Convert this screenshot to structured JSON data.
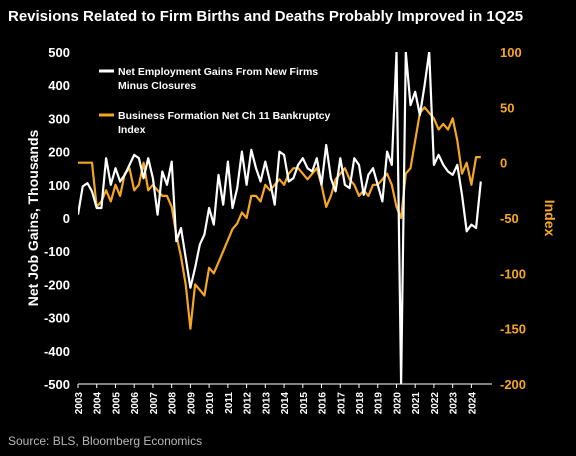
{
  "title": "Revisions Related to Firm Births and Deaths Probably Improved in 1Q25",
  "source": "Source: BLS, Bloomberg Economics",
  "chart_data": {
    "type": "line",
    "y_left": {
      "label": "Net Job Gains, Thousands",
      "range": [
        -500,
        500
      ],
      "ticks": [
        500,
        400,
        300,
        200,
        100,
        0,
        -100,
        -200,
        -300,
        -400,
        -500
      ],
      "color": "#ffffff"
    },
    "y_right": {
      "label": "Index",
      "range": [
        -200,
        100
      ],
      "ticks": [
        100,
        50,
        0,
        -50,
        -100,
        -150,
        -200
      ],
      "color": "#f5a623"
    },
    "x_ticks": [
      "2003",
      "2004",
      "2005",
      "2006",
      "2007",
      "2008",
      "2009",
      "2010",
      "2011",
      "2012",
      "2013",
      "2014",
      "2015",
      "2016",
      "2017",
      "2018",
      "2019",
      "2020",
      "2021",
      "2022",
      "2023",
      "2024"
    ],
    "grid": false,
    "legend_position": "top-left",
    "series": [
      {
        "name": "Net Employment Gains From New Firms Minus Closures",
        "axis": "left",
        "color": "#ffffff",
        "x": [
          2003.0,
          2003.25,
          2003.5,
          2003.75,
          2004.0,
          2004.25,
          2004.5,
          2004.75,
          2005.0,
          2005.25,
          2005.5,
          2005.75,
          2006.0,
          2006.25,
          2006.5,
          2006.75,
          2007.0,
          2007.25,
          2007.5,
          2007.75,
          2008.0,
          2008.25,
          2008.5,
          2008.75,
          2009.0,
          2009.25,
          2009.5,
          2009.75,
          2010.0,
          2010.25,
          2010.5,
          2010.75,
          2011.0,
          2011.25,
          2011.5,
          2011.75,
          2012.0,
          2012.25,
          2012.5,
          2012.75,
          2013.0,
          2013.25,
          2013.5,
          2013.75,
          2014.0,
          2014.25,
          2014.5,
          2014.75,
          2015.0,
          2015.25,
          2015.5,
          2015.75,
          2016.0,
          2016.25,
          2016.5,
          2016.75,
          2017.0,
          2017.25,
          2017.5,
          2017.75,
          2018.0,
          2018.25,
          2018.5,
          2018.75,
          2019.0,
          2019.25,
          2019.5,
          2019.75,
          2020.0,
          2020.25,
          2020.5,
          2020.75,
          2021.0,
          2021.25,
          2021.5,
          2021.75,
          2022.0,
          2022.25,
          2022.5,
          2022.75,
          2023.0,
          2023.25,
          2023.5,
          2023.75,
          2024.0,
          2024.25,
          2024.5
        ],
        "y": [
          10,
          95,
          105,
          80,
          30,
          30,
          180,
          100,
          150,
          110,
          130,
          160,
          190,
          180,
          120,
          180,
          120,
          10,
          140,
          100,
          170,
          -70,
          -30,
          -120,
          -210,
          -150,
          -80,
          -50,
          30,
          -20,
          130,
          40,
          170,
          30,
          90,
          200,
          100,
          205,
          150,
          110,
          170,
          110,
          40,
          200,
          190,
          110,
          120,
          160,
          180,
          150,
          140,
          180,
          100,
          220,
          120,
          80,
          180,
          100,
          90,
          180,
          160,
          70,
          130,
          150,
          100,
          50,
          200,
          160,
          500,
          -500,
          500,
          340,
          380,
          310,
          400,
          500,
          160,
          190,
          160,
          140,
          130,
          160,
          70,
          -40,
          -20,
          -30,
          110
        ]
      },
      {
        "name": "Business Formation Net Ch 11 Bankruptcy Index",
        "axis": "right",
        "color": "#f5a623",
        "x": [
          2003.0,
          2003.25,
          2003.5,
          2003.75,
          2004.0,
          2004.25,
          2004.5,
          2004.75,
          2005.0,
          2005.25,
          2005.5,
          2005.75,
          2006.0,
          2006.25,
          2006.5,
          2006.75,
          2007.0,
          2007.25,
          2007.5,
          2007.75,
          2008.0,
          2008.25,
          2008.5,
          2008.75,
          2009.0,
          2009.25,
          2009.5,
          2009.75,
          2010.0,
          2010.25,
          2010.5,
          2010.75,
          2011.0,
          2011.25,
          2011.5,
          2011.75,
          2012.0,
          2012.25,
          2012.5,
          2012.75,
          2013.0,
          2013.25,
          2013.5,
          2013.75,
          2014.0,
          2014.25,
          2014.5,
          2014.75,
          2015.0,
          2015.25,
          2015.5,
          2015.75,
          2016.0,
          2016.25,
          2016.5,
          2016.75,
          2017.0,
          2017.25,
          2017.5,
          2017.75,
          2018.0,
          2018.25,
          2018.5,
          2018.75,
          2019.0,
          2019.25,
          2019.5,
          2019.75,
          2020.0,
          2020.25,
          2020.5,
          2020.75,
          2021.0,
          2021.25,
          2021.5,
          2021.75,
          2022.0,
          2022.25,
          2022.5,
          2022.75,
          2023.0,
          2023.25,
          2023.5,
          2023.75,
          2024.0,
          2024.25,
          2024.5
        ],
        "y": [
          0,
          0,
          0,
          0,
          -40,
          -35,
          -25,
          -35,
          -20,
          -30,
          -10,
          -5,
          -25,
          -20,
          0,
          -25,
          -20,
          -25,
          -30,
          -30,
          -40,
          -65,
          -85,
          -110,
          -150,
          -110,
          -115,
          -120,
          -95,
          -100,
          -90,
          -80,
          -70,
          -60,
          -55,
          -45,
          -50,
          -30,
          -30,
          -35,
          -20,
          -25,
          -20,
          -15,
          -20,
          -10,
          -5,
          -5,
          -10,
          -15,
          -10,
          -5,
          -20,
          -40,
          -30,
          -15,
          -10,
          -5,
          -15,
          -20,
          -30,
          -25,
          -30,
          -20,
          -20,
          -15,
          -10,
          -20,
          -40,
          -50,
          -10,
          -5,
          20,
          45,
          50,
          45,
          40,
          30,
          35,
          30,
          40,
          20,
          -10,
          0,
          -20,
          5,
          5
        ]
      }
    ]
  }
}
